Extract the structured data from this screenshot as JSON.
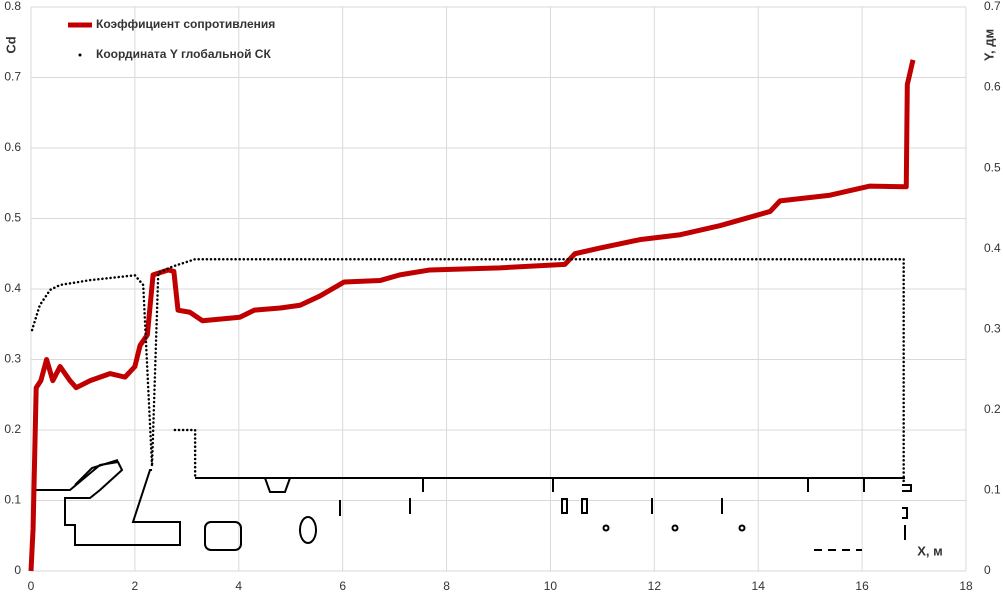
{
  "chart_data": {
    "type": "line",
    "x_label": "X, м",
    "y_label": "Cd",
    "y2_label": "Y, дм",
    "xlim": [
      0,
      18
    ],
    "xticks": [
      0,
      2,
      4,
      6,
      8,
      10,
      12,
      14,
      16,
      18
    ],
    "ylim": [
      0,
      0.8
    ],
    "yticks": [
      0,
      0.1,
      0.2,
      0.3,
      0.4,
      0.5,
      0.6,
      0.7,
      0.8
    ],
    "y2lim": [
      0,
      0.7
    ],
    "y2ticks": [
      0,
      0.1,
      0.2,
      0.3,
      0.4,
      0.5,
      0.6,
      0.7
    ],
    "grid": true,
    "legend": "top-left",
    "series": [
      {
        "name": "Коэффициент сопротивления",
        "color": "#c00000",
        "style": "solid",
        "x": [
          0,
          0.04,
          0.1,
          0.19,
          0.3,
          0.42,
          0.56,
          0.75,
          0.87,
          1.14,
          1.52,
          1.81,
          2.0,
          2.1,
          2.24,
          2.35,
          2.64,
          2.75,
          2.83,
          3.06,
          3.3,
          4.02,
          4.3,
          4.8,
          5.18,
          5.56,
          6.03,
          6.72,
          7.1,
          7.68,
          9.03,
          10.28,
          10.47,
          10.95,
          11.72,
          12.5,
          13.27,
          14.23,
          14.42,
          15.38,
          16.15,
          16.85,
          16.87,
          16.98
        ],
        "values": [
          0,
          0.06,
          0.26,
          0.27,
          0.3,
          0.27,
          0.29,
          0.27,
          0.26,
          0.27,
          0.28,
          0.275,
          0.29,
          0.32,
          0.335,
          0.42,
          0.427,
          0.425,
          0.37,
          0.367,
          0.355,
          0.36,
          0.37,
          0.373,
          0.377,
          0.39,
          0.41,
          0.412,
          0.42,
          0.427,
          0.43,
          0.435,
          0.45,
          0.458,
          0.47,
          0.477,
          0.49,
          0.51,
          0.525,
          0.533,
          0.546,
          0.545,
          0.69,
          0.725
        ]
      },
      {
        "name": "Координата Y глобальной СК",
        "color": "#000000",
        "style": "dotted",
        "axis": "y2",
        "x": [
          0.02,
          0.17,
          0.37,
          0.56,
          1.14,
          2.0,
          2.16,
          2.33,
          2.45,
          2.73,
          3.16,
          16.8,
          16.8,
          2.77,
          2.77,
          3.16,
          3.16
        ],
        "values": [
          0.299,
          0.33,
          0.349,
          0.355,
          0.361,
          0.367,
          0.355,
          0.13,
          0.37,
          0.378,
          0.387,
          0.387,
          0.11,
          null,
          0.175,
          0.175,
          0.115
        ]
      }
    ]
  }
}
